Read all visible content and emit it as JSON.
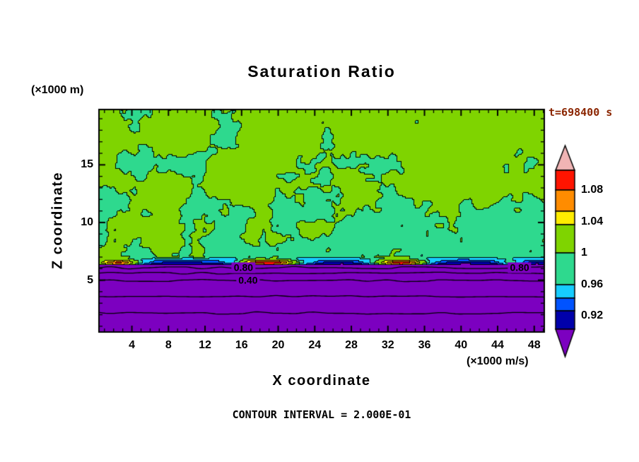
{
  "chart_data": {
    "type": "contour",
    "title": "Saturation Ratio",
    "xlabel": "X coordinate",
    "ylabel": "Z coordinate",
    "x_unit": "(×1000 m/s)",
    "y_unit": "(×1000 m)",
    "time_label": "t=698400 s",
    "timestamp_color": "#8b2500",
    "contour_interval_label": "CONTOUR INTERVAL = 2.000E-01",
    "contour_interval": 0.2,
    "x_ticks": [
      4,
      8,
      12,
      16,
      20,
      24,
      28,
      32,
      36,
      40,
      44,
      48
    ],
    "y_ticks": [
      5,
      10,
      15
    ],
    "x_range": [
      0.4,
      49.1
    ],
    "z_range": [
      0.5,
      19.8
    ],
    "grid": false,
    "legend_position": "right-colorbar",
    "colorbar": {
      "labels": [
        "1.08",
        "1.04",
        "1",
        "0.96",
        "0.92"
      ],
      "colors_top_to_bottom": [
        "#f0b4b4",
        "#ff1400",
        "#ff8c00",
        "#ffec00",
        "#7fd400",
        "#2ed98e",
        "#17ccff",
        "#0053ff",
        "#0000aa",
        "#7c00c0"
      ]
    },
    "line_contours": [
      {
        "level": 0.8,
        "z": 6.08,
        "labels": [
          {
            "text": "0.80",
            "x": 16.2
          },
          {
            "text": "0.80",
            "x": 46.4
          }
        ]
      },
      {
        "level": 0.6,
        "z": 5.62,
        "labels": []
      },
      {
        "level": 0.4,
        "z": 4.95,
        "labels": [
          {
            "text": "0.40",
            "x": 16.7
          }
        ]
      },
      {
        "level": 0.2,
        "z": 3.6,
        "labels": []
      },
      {
        "level": 0.0,
        "z": 2.15,
        "labels": []
      }
    ],
    "field": {
      "upper_region": "S ≈ 1.0 ± 0.03: mottled yellow-green (S>1) with turquoise patches (S<1), small black-outlined speck contours",
      "lower_region": "subsaturated deep-purple layer below z≈6.4 with horizontal line contours every 0.2",
      "transition_z": 6.4,
      "transition_bands": "thin navy / blue / cyan strata where S rises 0.9→1.0",
      "supersaturation_streaks": [
        {
          "x": 2.5,
          "w": 2.6,
          "h": 0.19
        },
        {
          "x": 19.0,
          "w": 3.6,
          "h": 0.22
        },
        {
          "x": 33.5,
          "w": 3.0,
          "h": 0.21
        },
        {
          "x": 45.5,
          "w": 1.4,
          "h": 0.08
        }
      ]
    }
  }
}
